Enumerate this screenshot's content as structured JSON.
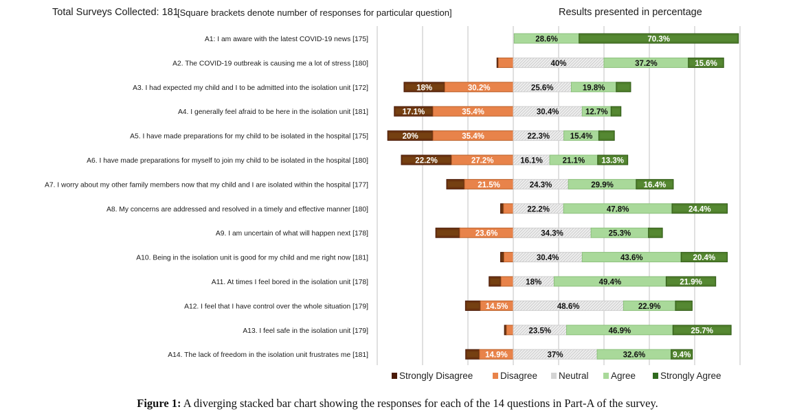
{
  "header": {
    "total_surveys": "Total Surveys Collected: 181",
    "bracket_note": "[Square brackets denote number of responses for particular question]",
    "results_title": "Results presented in percentage"
  },
  "caption": {
    "label": "Figure 1:",
    "text": " A diverging stacked bar chart showing the responses for each of the 14 questions in Part-A of the survey."
  },
  "colors": {
    "strongly_disagree": "#6b3410",
    "strongly_disagree_border": "#4a1a08",
    "disagree": "#e8834a",
    "disagree_border": "#b9602a",
    "neutral": "#d9d9d9",
    "agree": "#a9d99a",
    "agree_border": "#8cc07c",
    "strongly_agree": "#4f7f2c",
    "strongly_agree_border": "#2f5a16",
    "gridline": "#d0d0d0"
  },
  "chart_data": {
    "type": "bar",
    "subtype": "diverging-stacked-horizontal",
    "title": "Results presented in percentage",
    "xlabel": "",
    "ylabel": "",
    "xlim": [
      -60,
      100
    ],
    "grid_step": 20,
    "grid": true,
    "legend_position": "bottom",
    "series_names": [
      "Strongly Disagree",
      "Disagree",
      "Neutral",
      "Agree",
      "Strongly Agree"
    ],
    "categories": [
      "A1: I am aware with the latest COVID-19 news [175]",
      "A2. The COVID-19 outbreak is causing me a lot of stress [180]",
      "A3. I had expected my child and I to be admitted into the isolation unit [172]",
      "A4. I generally feel afraid to be here in the isolation unit [181]",
      "A5. I have made preparations for my child to be isolated in the hospital [175]",
      "A6. I have made preparations for myself to join my child to be isolated in the hospital [180]",
      "A7. I worry about my other family members now that my child and I are isolated within the hospital [177]",
      "A8. My concerns are addressed and resolved in a timely and effective manner [180]",
      "A9. I am uncertain of what will happen next [178]",
      "A10. Being in the isolation unit is good for my child and me right now [181]",
      "A11. At times I feel bored in the isolation unit [178]",
      "A12. I feel that I have control over the whole situation [179]",
      "A13. I feel safe in the isolation unit [179]",
      "A14. The lack of freedom in the isolation unit frustrates me [181]"
    ],
    "series": [
      {
        "name": "Strongly Disagree",
        "values": [
          0,
          0.6,
          18,
          17.1,
          20,
          22.2,
          7.9,
          1.3,
          10.6,
          1.5,
          5.3,
          6.6,
          0.9,
          6.1
        ],
        "labels": [
          "",
          "",
          "18%",
          "17.1%",
          "20%",
          "22.2%",
          "",
          "",
          "",
          "",
          "",
          "",
          "",
          ""
        ]
      },
      {
        "name": "Disagree",
        "values": [
          0,
          6.6,
          30.2,
          35.4,
          35.4,
          27.2,
          21.5,
          4.3,
          23.6,
          4.1,
          5.4,
          14.5,
          3.0,
          14.9
        ],
        "labels": [
          "",
          "",
          "30.2%",
          "35.4%",
          "35.4%",
          "27.2%",
          "21.5%",
          "",
          "23.6%",
          "",
          "",
          "14.5%",
          "",
          "14.9%"
        ]
      },
      {
        "name": "Neutral",
        "values": [
          0.4,
          40,
          25.6,
          30.4,
          22.3,
          16.1,
          24.3,
          22.2,
          34.3,
          30.4,
          18,
          48.6,
          23.5,
          37
        ],
        "labels": [
          "",
          "40%",
          "25.6%",
          "30.4%",
          "22.3%",
          "16.1%",
          "24.3%",
          "22.2%",
          "34.3%",
          "30.4%",
          "18%",
          "48.6%",
          "23.5%",
          "37%"
        ]
      },
      {
        "name": "Agree",
        "values": [
          28.6,
          37.2,
          19.8,
          12.7,
          15.4,
          21.1,
          29.9,
          47.8,
          25.3,
          43.6,
          49.4,
          22.9,
          46.9,
          32.6
        ],
        "labels": [
          "28.6%",
          "37.2%",
          "19.8%",
          "12.7%",
          "15.4%",
          "21.1%",
          "29.9%",
          "47.8%",
          "25.3%",
          "43.6%",
          "49.4%",
          "22.9%",
          "46.9%",
          "32.6%"
        ]
      },
      {
        "name": "Strongly Agree",
        "values": [
          70.3,
          15.6,
          6.4,
          4.4,
          6.9,
          13.3,
          16.4,
          24.4,
          6.2,
          20.4,
          21.9,
          7.4,
          25.7,
          9.4
        ],
        "labels": [
          "70.3%",
          "15.6%",
          "",
          "",
          "",
          "13.3%",
          "16.4%",
          "24.4%",
          "",
          "20.4%",
          "21.9%",
          "",
          "25.7%",
          "9.4%"
        ]
      }
    ]
  }
}
